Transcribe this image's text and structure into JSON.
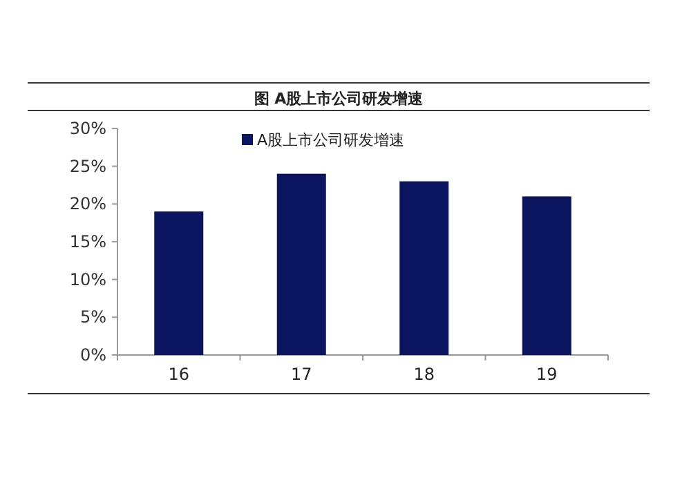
{
  "chart_data": {
    "type": "bar",
    "title": "图 A股上市公司研发增速",
    "categories": [
      "16",
      "17",
      "18",
      "19"
    ],
    "series": [
      {
        "name": "A股上市公司研发增速",
        "color": "#0a145f",
        "values": [
          19,
          24,
          23,
          21
        ]
      }
    ],
    "ylim": [
      0,
      30
    ],
    "yticks": [
      {
        "value": 0,
        "label": "0%"
      },
      {
        "value": 5,
        "label": "5%"
      },
      {
        "value": 10,
        "label": "10%"
      },
      {
        "value": 15,
        "label": "15%"
      },
      {
        "value": 20,
        "label": "20%"
      },
      {
        "value": 25,
        "label": "25%"
      },
      {
        "value": 30,
        "label": "30%"
      }
    ],
    "grid": false,
    "legend": "top"
  }
}
